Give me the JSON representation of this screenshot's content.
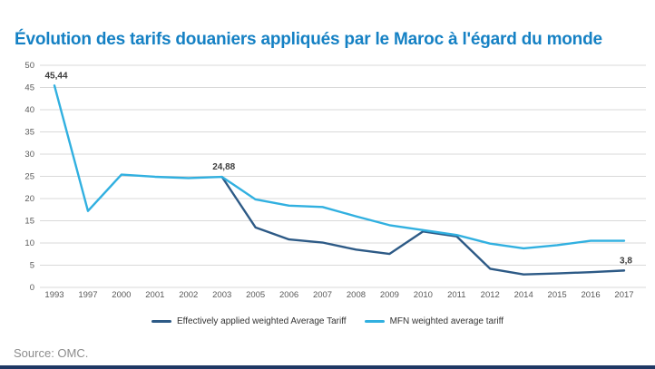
{
  "title": "Évolution des tarifs douaniers appliqués par le Maroc à l'égard du monde",
  "source": "Source: OMC.",
  "colors": {
    "title": "#1581c4",
    "series_effective": "#2d5a86",
    "series_mfn": "#31b0e0",
    "gridline": "#d9d9d9",
    "axis_text": "#595959",
    "data_label_text": "#3d3d3d",
    "legend_text": "#333333",
    "source_text": "#8c8c8c",
    "bottom_bar": "#1f3864"
  },
  "legend": [
    {
      "label": "Effectively applied weighted Average Tariff",
      "color": "#2d5a86"
    },
    {
      "label": "MFN weighted average tariff",
      "color": "#31b0e0"
    }
  ],
  "chart_data": {
    "type": "line",
    "title": "Évolution des tarifs douaniers appliqués par le Maroc à l'égard du monde",
    "categories": [
      "1993",
      "1997",
      "2000",
      "2001",
      "2002",
      "2003",
      "2005",
      "2006",
      "2007",
      "2008",
      "2009",
      "2010",
      "2011",
      "2012",
      "2014",
      "2015",
      "2016",
      "2017"
    ],
    "series": [
      {
        "name": "Effectively applied weighted Average Tariff",
        "color": "#2d5a86",
        "values": [
          null,
          null,
          null,
          null,
          null,
          24.88,
          13.5,
          10.8,
          10.1,
          8.5,
          7.55,
          12.6,
          11.5,
          4.2,
          2.92,
          3.16,
          3.43,
          3.8
        ]
      },
      {
        "name": "MFN weighted average tariff",
        "color": "#31b0e0",
        "values": [
          45.44,
          17.2,
          25.4,
          24.9,
          24.6,
          24.88,
          19.8,
          18.4,
          18.1,
          16.0,
          14.0,
          12.9,
          11.8,
          9.86,
          8.78,
          9.5,
          10.5,
          10.5
        ]
      }
    ],
    "point_labels": [
      {
        "series": "MFN weighted average tariff",
        "category": "1993",
        "text": "45,44"
      },
      {
        "series": "MFN weighted average tariff",
        "category": "2003",
        "text": "24,88"
      },
      {
        "series": "Effectively applied weighted Average Tariff",
        "category": "2017",
        "text": "3,8"
      }
    ],
    "xlabel": "",
    "ylabel": "",
    "ylim": [
      0,
      50
    ],
    "y_tick_step": 5,
    "grid": true,
    "legend_position": "bottom"
  }
}
